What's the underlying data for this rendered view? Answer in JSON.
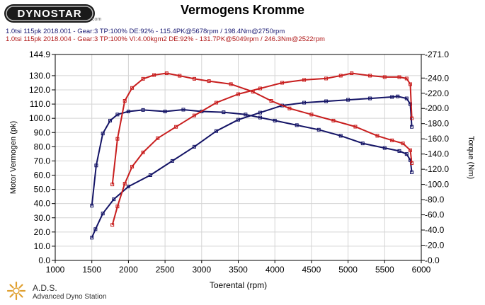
{
  "brand": {
    "logo_text": "DYNOSTAR",
    "logo_suffix": ".com"
  },
  "chart_data": {
    "type": "line",
    "title": "Vermogens Kromme",
    "runs": [
      "1.0tsi 115pk 2018.001 - Gear:3 TP:100% DE:92%  - 115.4PK@5678rpm / 198.4Nm@2750rpm",
      "1.0tsi 115pk 2018.004 - Gear:3 TP:100% VI:4.00kgm2 DE:92%  - 131.7PK@5049rpm / 246.3Nm@2522rpm"
    ],
    "xlabel": "Toerental (rpm)",
    "ylabel_left": "Motor Vermogen (pk)",
    "ylabel_right": "Torque (Nm)",
    "xlim": [
      1000,
      6000
    ],
    "ylim_left": [
      0,
      144.9
    ],
    "ylim_right": [
      0,
      271
    ],
    "x_ticks": [
      1000,
      1500,
      2000,
      2500,
      3000,
      3500,
      4000,
      4500,
      5000,
      5500,
      6000
    ],
    "y_ticks_left": [
      "0.0",
      "10.0",
      "20.0",
      "30.0",
      "40.0",
      "50.0",
      "60.0",
      "70.0",
      "80.0",
      "90.0",
      "100.0",
      "110.0",
      "120.0",
      "130.0",
      "144.9"
    ],
    "y_ticks_right": [
      "0.0",
      "20.0",
      "40.0",
      "60.0",
      "80.0",
      "100.0",
      "120.0",
      "140.0",
      "160.0",
      "180.0",
      "200.0",
      "220.0",
      "240.0",
      "271.0"
    ],
    "grid": true,
    "legend": "none",
    "colors": {
      "run1": "#141466",
      "run2": "#c81e1e"
    },
    "series": [
      {
        "axis": "right",
        "color": "#141466",
        "x": [
          1500,
          1560,
          1650,
          1750,
          1850,
          2000,
          2200,
          2500,
          2750,
          3000,
          3300,
          3600,
          3800,
          4000,
          4300,
          4600,
          4900,
          5200,
          5500,
          5700,
          5800,
          5850,
          5870
        ],
        "y": [
          72,
          125,
          167,
          184,
          192,
          196,
          198,
          196,
          198.4,
          196,
          195,
          192,
          188,
          184,
          178,
          172,
          164,
          154,
          148,
          144,
          140,
          132,
          116
        ]
      },
      {
        "axis": "left",
        "color": "#141466",
        "x": [
          1500,
          1550,
          1650,
          1800,
          2000,
          2300,
          2600,
          2900,
          3200,
          3500,
          3800,
          4100,
          4400,
          4700,
          5000,
          5300,
          5600,
          5678,
          5800,
          5850,
          5870
        ],
        "y": [
          16,
          22,
          33,
          43,
          52,
          60,
          70,
          80,
          91,
          99,
          104,
          109,
          111,
          112,
          113,
          114,
          115,
          115.4,
          114,
          110,
          94
        ]
      },
      {
        "axis": "right",
        "color": "#c81e1e",
        "x": [
          1780,
          1850,
          1950,
          2050,
          2200,
          2350,
          2522,
          2700,
          2900,
          3100,
          3400,
          3700,
          3950,
          4200,
          4500,
          4800,
          5100,
          5400,
          5600,
          5750,
          5850,
          5870
        ],
        "y": [
          100,
          160,
          210,
          227,
          239,
          244,
          246.3,
          243,
          239,
          236,
          232,
          222,
          210,
          200,
          192,
          184,
          176,
          164,
          158,
          154,
          145,
          128
        ]
      },
      {
        "axis": "left",
        "color": "#c81e1e",
        "x": [
          1780,
          1850,
          1950,
          2050,
          2200,
          2400,
          2650,
          2900,
          3200,
          3500,
          3800,
          4100,
          4400,
          4700,
          4900,
          5049,
          5300,
          5500,
          5700,
          5800,
          5850,
          5870
        ],
        "y": [
          25,
          38,
          54,
          66,
          76,
          86,
          94,
          102,
          111,
          117,
          121,
          125,
          127,
          128,
          130,
          131.7,
          130,
          129,
          129,
          128,
          124,
          100
        ]
      }
    ]
  },
  "footer": {
    "name": "A.D.S.",
    "subtitle": "Advanced Dyno Station"
  }
}
